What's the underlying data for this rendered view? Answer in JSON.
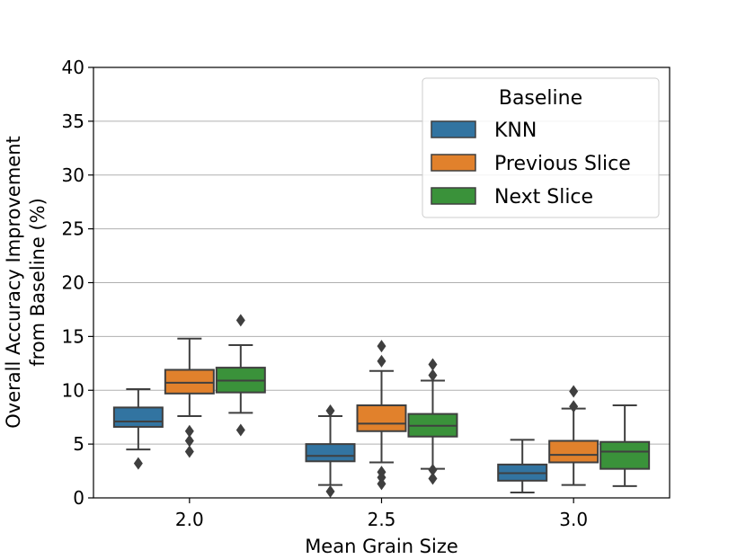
{
  "chart_data": {
    "type": "box",
    "xlabel": "Mean Grain Size",
    "ylabel_lines": [
      "Overall Accuracy Improvement",
      "from Baseline (%)"
    ],
    "ylim": [
      0,
      40
    ],
    "yticks": [
      0,
      5,
      10,
      15,
      20,
      25,
      30,
      35,
      40
    ],
    "categories": [
      "2.0",
      "2.5",
      "3.0"
    ],
    "legend": {
      "title": "Baseline",
      "placement": "upper-right"
    },
    "series": [
      {
        "name": "KNN",
        "color": "#3274a1",
        "boxes": [
          {
            "whislo": 4.5,
            "q1": 6.6,
            "med": 7.1,
            "q3": 8.4,
            "whishi": 10.1,
            "fliers": [
              3.2
            ]
          },
          {
            "whislo": 1.2,
            "q1": 3.4,
            "med": 3.9,
            "q3": 5.0,
            "whishi": 7.6,
            "fliers": [
              0.6,
              8.1
            ]
          },
          {
            "whislo": 0.5,
            "q1": 1.6,
            "med": 2.3,
            "q3": 3.1,
            "whishi": 5.4,
            "fliers": []
          }
        ]
      },
      {
        "name": "Previous Slice",
        "color": "#e1812c",
        "boxes": [
          {
            "whislo": 7.6,
            "q1": 9.7,
            "med": 10.7,
            "q3": 11.9,
            "whishi": 14.8,
            "fliers": [
              4.3,
              5.3,
              6.2
            ]
          },
          {
            "whislo": 3.3,
            "q1": 6.2,
            "med": 6.9,
            "q3": 8.6,
            "whishi": 11.8,
            "fliers": [
              1.3,
              1.9,
              2.4,
              12.7,
              14.1
            ]
          },
          {
            "whislo": 1.2,
            "q1": 3.3,
            "med": 4.0,
            "q3": 5.3,
            "whishi": 8.3,
            "fliers": [
              8.5,
              9.9
            ]
          }
        ]
      },
      {
        "name": "Next Slice",
        "color": "#3a923a",
        "boxes": [
          {
            "whislo": 7.9,
            "q1": 9.8,
            "med": 10.9,
            "q3": 12.1,
            "whishi": 14.2,
            "fliers": [
              6.3,
              16.5
            ]
          },
          {
            "whislo": 2.7,
            "q1": 5.7,
            "med": 6.7,
            "q3": 7.8,
            "whishi": 10.9,
            "fliers": [
              1.8,
              2.6,
              11.4,
              12.4
            ]
          },
          {
            "whislo": 1.1,
            "q1": 2.7,
            "med": 4.3,
            "q3": 5.2,
            "whishi": 8.6,
            "fliers": []
          }
        ]
      }
    ]
  }
}
